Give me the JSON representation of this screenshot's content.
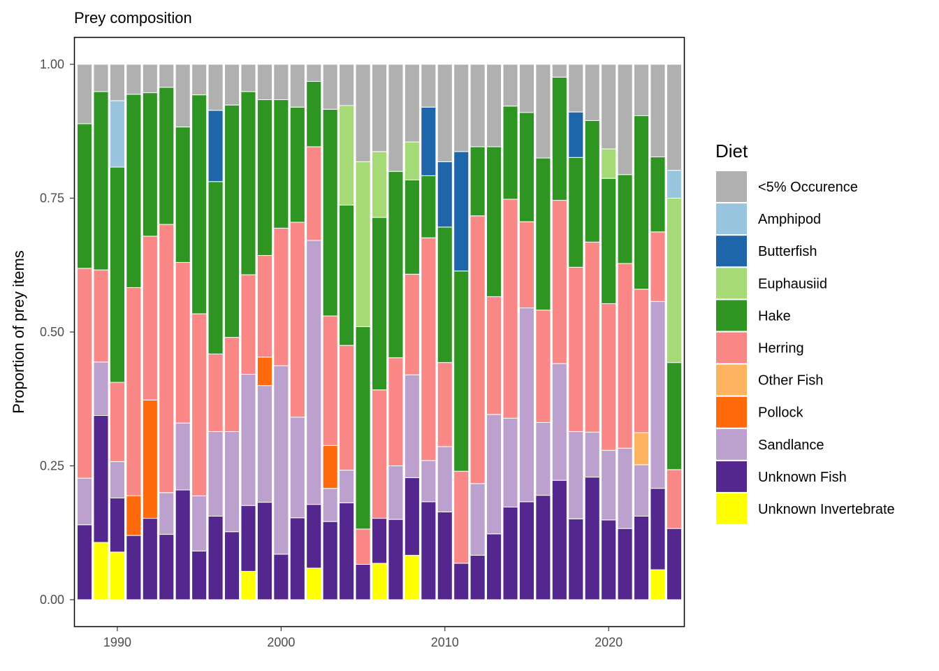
{
  "chart_data": {
    "type": "bar",
    "stacked": true,
    "title": "Prey composition",
    "xlabel": "",
    "ylabel": "Proportion of prey items",
    "ylim": [
      0,
      1
    ],
    "xlim": [
      1987.4,
      2024.6
    ],
    "grid": false,
    "legend_position": "right",
    "x_ticks": [
      {
        "value": 1990,
        "label": "1990"
      },
      {
        "value": 2000,
        "label": "2000"
      },
      {
        "value": 2010,
        "label": "2010"
      },
      {
        "value": 2020,
        "label": "2020"
      }
    ],
    "y_ticks": [
      {
        "value": 0,
        "label": "0.00"
      },
      {
        "value": 0.25,
        "label": "0.25"
      },
      {
        "value": 0.5,
        "label": "0.50"
      },
      {
        "value": 0.75,
        "label": "0.75"
      },
      {
        "value": 1,
        "label": "1.00"
      }
    ],
    "legend_title": "Diet",
    "categories": [
      1988,
      1989,
      1990,
      1991,
      1992,
      1993,
      1994,
      1995,
      1996,
      1997,
      1998,
      1999,
      2000,
      2001,
      2002,
      2003,
      2004,
      2005,
      2006,
      2007,
      2008,
      2009,
      2010,
      2011,
      2012,
      2013,
      2014,
      2015,
      2016,
      2017,
      2018,
      2019,
      2020,
      2021,
      2022,
      2023,
      2024
    ],
    "stack_order_top_to_bottom": [
      "<5% Occurence",
      "Amphipod",
      "Butterfish",
      "Euphausiid",
      "Hake",
      "Herring",
      "Other Fish",
      "Pollock",
      "Sandlance",
      "Unknown Fish",
      "Unknown Invertebrate"
    ],
    "series": [
      {
        "name": "Unknown Invertebrate",
        "color": "#FFFF00",
        "values": [
          0,
          0.107,
          0.089,
          0,
          0,
          0,
          0,
          0,
          0,
          0,
          0.053,
          0,
          0,
          0,
          0.059,
          0,
          0,
          0,
          0.068,
          0,
          0.083,
          0,
          0,
          0,
          0,
          0,
          0,
          0,
          0,
          0,
          0,
          0,
          0,
          0,
          0,
          0.056,
          0
        ]
      },
      {
        "name": "Unknown Fish",
        "color": "#54278F",
        "values": [
          0.14,
          0.237,
          0.101,
          0.12,
          0.152,
          0.122,
          0.205,
          0.091,
          0.156,
          0.127,
          0.123,
          0.182,
          0.085,
          0.153,
          0.119,
          0.146,
          0.181,
          0.066,
          0.084,
          0.15,
          0.145,
          0.183,
          0.164,
          0.068,
          0.083,
          0.123,
          0.173,
          0.183,
          0.195,
          0.223,
          0.151,
          0.229,
          0.149,
          0.133,
          0.156,
          0.152,
          0.133
        ]
      },
      {
        "name": "Sandlance",
        "color": "#BCA1CE",
        "values": [
          0.087,
          0.1,
          0.068,
          0,
          0,
          0.078,
          0.125,
          0.103,
          0.158,
          0.187,
          0.245,
          0.218,
          0.352,
          0.188,
          0.493,
          0.062,
          0.061,
          0,
          0,
          0.1,
          0.192,
          0.077,
          0.122,
          0,
          0.134,
          0.223,
          0.166,
          0.362,
          0.136,
          0.218,
          0.163,
          0.084,
          0.13,
          0.15,
          0.096,
          0.349,
          0
        ]
      },
      {
        "name": "Pollock",
        "color": "#FE6A0C",
        "values": [
          0,
          0,
          0,
          0.074,
          0.221,
          0,
          0,
          0,
          0,
          0,
          0,
          0.053,
          0,
          0,
          0,
          0.08,
          0,
          0,
          0,
          0,
          0,
          0,
          0,
          0,
          0,
          0,
          0,
          0,
          0,
          0,
          0,
          0,
          0,
          0,
          0,
          0,
          0
        ]
      },
      {
        "name": "Other Fish",
        "color": "#FDB461",
        "values": [
          0,
          0,
          0,
          0,
          0,
          0,
          0,
          0,
          0,
          0,
          0,
          0,
          0,
          0,
          0,
          0,
          0,
          0,
          0,
          0,
          0,
          0,
          0,
          0,
          0,
          0,
          0,
          0,
          0,
          0,
          0,
          0,
          0,
          0,
          0.06,
          0,
          0
        ]
      },
      {
        "name": "Herring",
        "color": "#F98886",
        "values": [
          0.392,
          0.172,
          0.148,
          0.389,
          0.306,
          0.501,
          0.3,
          0.34,
          0.145,
          0.176,
          0.186,
          0.19,
          0.257,
          0.364,
          0.175,
          0.242,
          0.233,
          0.066,
          0.24,
          0.202,
          0.188,
          0.416,
          0.157,
          0.172,
          0.5,
          0.22,
          0.409,
          0.161,
          0.21,
          0.305,
          0.307,
          0.355,
          0.274,
          0.345,
          0.268,
          0.13,
          0.11
        ]
      },
      {
        "name": "Hake",
        "color": "#2E9422",
        "values": [
          0.27,
          0.333,
          0.402,
          0.361,
          0.268,
          0.256,
          0.253,
          0.409,
          0.322,
          0.434,
          0.342,
          0.291,
          0.24,
          0.215,
          0.122,
          0.386,
          0.262,
          0.378,
          0.322,
          0.348,
          0.176,
          0.116,
          0.253,
          0.374,
          0.129,
          0.28,
          0.174,
          0.204,
          0.284,
          0.23,
          0.205,
          0.227,
          0.234,
          0.166,
          0.324,
          0.14,
          0.2
        ]
      },
      {
        "name": "Euphausiid",
        "color": "#A6DA77",
        "values": [
          0,
          0,
          0,
          0,
          0,
          0,
          0,
          0,
          0,
          0,
          0,
          0,
          0,
          0,
          0,
          0,
          0.186,
          0.308,
          0.123,
          0,
          0.071,
          0,
          0,
          0,
          0,
          0,
          0,
          0,
          0,
          0,
          0,
          0,
          0.055,
          0,
          0,
          0,
          0.307
        ]
      },
      {
        "name": "Butterfish",
        "color": "#1F65A9",
        "values": [
          0,
          0,
          0,
          0,
          0,
          0,
          0,
          0,
          0.133,
          0,
          0,
          0,
          0,
          0,
          0,
          0,
          0,
          0,
          0,
          0,
          0,
          0.128,
          0.122,
          0.223,
          0,
          0,
          0,
          0,
          0,
          0,
          0.085,
          0,
          0,
          0,
          0,
          0,
          0
        ]
      },
      {
        "name": "Amphipod",
        "color": "#99C5DF",
        "values": [
          0,
          0,
          0.124,
          0,
          0,
          0,
          0,
          0,
          0,
          0,
          0,
          0,
          0,
          0,
          0,
          0,
          0,
          0,
          0,
          0,
          0,
          0,
          0,
          0,
          0,
          0,
          0,
          0,
          0,
          0,
          0,
          0,
          0,
          0,
          0,
          0,
          0.052
        ]
      },
      {
        "name": "<5% Occurence",
        "color": "#B0B0B0",
        "values": [
          0.111,
          0.051,
          0.068,
          0.056,
          0.053,
          0.043,
          0.117,
          0.057,
          0.086,
          0.076,
          0.051,
          0.066,
          0.066,
          0.08,
          0.032,
          0.084,
          0.077,
          0.182,
          0.163,
          0.2,
          0.145,
          0.08,
          0.182,
          0.163,
          0.154,
          0.154,
          0.078,
          0.09,
          0.175,
          0.024,
          0.089,
          0.105,
          0.158,
          0.206,
          0.096,
          0.173,
          0.198
        ]
      }
    ]
  },
  "colors": {
    "panel_border": "#000000",
    "bar_outline": "#ffffff",
    "tick_label": "#4d4d4d"
  }
}
